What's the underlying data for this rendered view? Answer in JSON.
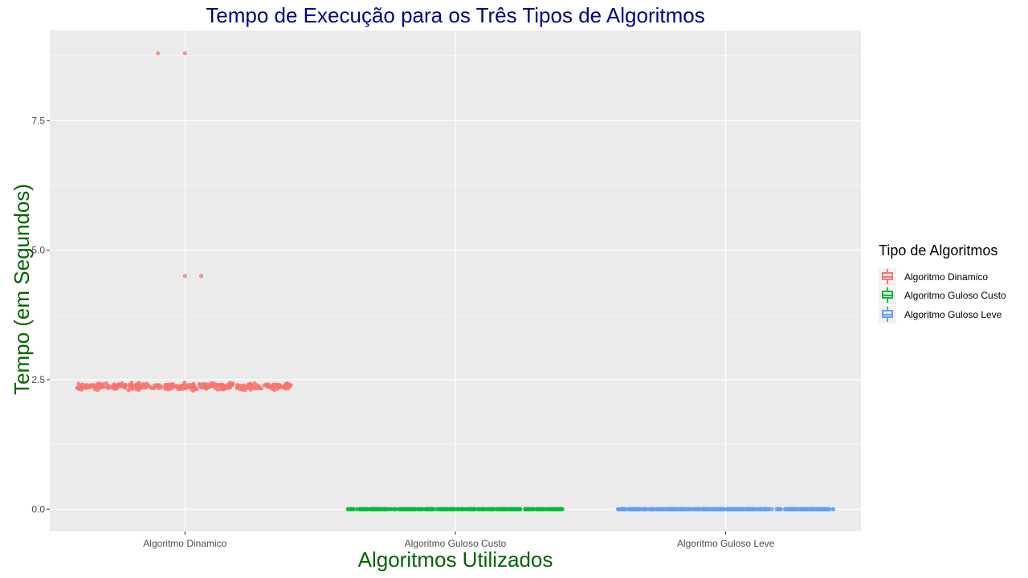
{
  "chart_data": {
    "type": "scatter",
    "title": "Tempo de Execução para os Três Tipos de Algoritmos",
    "xlabel": "Algoritmos Utilizados",
    "ylabel": "Tempo (em Segundos)",
    "categories": [
      "Algoritmo Dinamico",
      "Algoritmo Guloso Custo",
      "Algoritmo Guloso Leve"
    ],
    "y_ticks": [
      "0.0",
      "2.5",
      "5.0",
      "7.5"
    ],
    "y_tick_values": [
      0,
      2.5,
      5.0,
      7.5
    ],
    "ylim": [
      -0.43,
      9.24
    ],
    "grid": true,
    "legend_placement": "right",
    "legend": {
      "title": "Tipo de Algoritmos",
      "entries": [
        "Algoritmo Dinamico",
        "Algoritmo Guloso Custo",
        "Algoritmo Guloso Leve"
      ]
    },
    "series": [
      {
        "name": "Algoritmo Dinamico",
        "color": "#F8766D",
        "jitter_range": [
          -0.4,
          0.4
        ],
        "main_cluster": {
          "center": 2.37,
          "spread": 0.06,
          "count": 320
        },
        "outliers": [
          {
            "dx": -0.1,
            "y": 8.8
          },
          {
            "dx": 0.0,
            "y": 8.8
          },
          {
            "dx": 0.0,
            "y": 4.5
          },
          {
            "dx": 0.06,
            "y": 4.5
          }
        ]
      },
      {
        "name": "Algoritmo Guloso Custo",
        "color": "#00BA38",
        "jitter_range": [
          -0.4,
          0.4
        ],
        "main_cluster": {
          "center": 0.0,
          "spread": 0.0,
          "count": 300
        },
        "outliers": []
      },
      {
        "name": "Algoritmo Guloso Leve",
        "color": "#619CFF",
        "jitter_range": [
          -0.4,
          0.4
        ],
        "main_cluster": {
          "center": 0.0,
          "spread": 0.0,
          "count": 300
        },
        "outliers": []
      }
    ]
  },
  "colors": {
    "panel_bg": "#EBEBEB",
    "grid": "#FFFFFF",
    "title": "#00008B",
    "axis_title": "#006400"
  }
}
